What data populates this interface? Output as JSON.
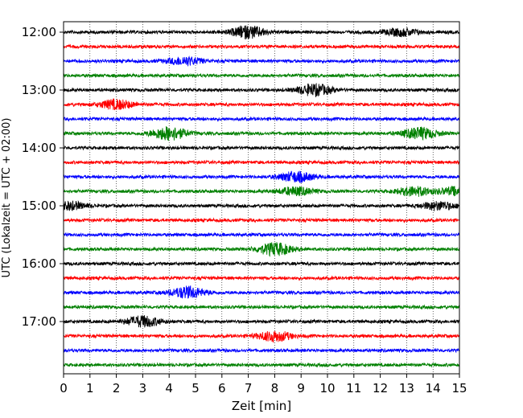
{
  "chart_data": {
    "type": "line",
    "title": "",
    "xlabel": "Zeit  [min]",
    "ylabel": "UTC (Lokalzeit = UTC + 02:00)",
    "xlim": [
      0,
      15
    ],
    "x_ticks": [
      "0",
      "1",
      "2",
      "3",
      "4",
      "5",
      "6",
      "7",
      "8",
      "9",
      "10",
      "11",
      "12",
      "13",
      "14",
      "15"
    ],
    "y_ticks": [
      "12:00",
      "13:00",
      "14:00",
      "15:00",
      "16:00",
      "17:00"
    ],
    "start_time": "12:00",
    "minutes_per_trace": 15,
    "trace_count": 24,
    "grid": "vertical dotted at each minute",
    "colors_cycle": [
      "#000000",
      "#ff0000",
      "#0000ff",
      "#008000"
    ],
    "events": [
      {
        "trace": 0,
        "time_min": 7.0,
        "amp": 0.9
      },
      {
        "trace": 0,
        "time_min": 12.8,
        "amp": 0.55
      },
      {
        "trace": 2,
        "time_min": 4.6,
        "amp": 0.6
      },
      {
        "trace": 4,
        "time_min": 9.5,
        "amp": 0.85
      },
      {
        "trace": 5,
        "time_min": 2.0,
        "amp": 0.7
      },
      {
        "trace": 7,
        "time_min": 4.0,
        "amp": 1.0
      },
      {
        "trace": 7,
        "time_min": 13.5,
        "amp": 0.85
      },
      {
        "trace": 10,
        "time_min": 8.8,
        "amp": 0.75
      },
      {
        "trace": 11,
        "time_min": 8.8,
        "amp": 0.6
      },
      {
        "trace": 11,
        "time_min": 13.3,
        "amp": 0.65
      },
      {
        "trace": 11,
        "time_min": 14.9,
        "amp": 0.6
      },
      {
        "trace": 12,
        "time_min": 0.2,
        "amp": 0.6
      },
      {
        "trace": 12,
        "time_min": 14.2,
        "amp": 0.6
      },
      {
        "trace": 15,
        "time_min": 8.0,
        "amp": 0.9
      },
      {
        "trace": 18,
        "time_min": 4.7,
        "amp": 0.85
      },
      {
        "trace": 20,
        "time_min": 3.0,
        "amp": 0.8
      },
      {
        "trace": 21,
        "time_min": 8.0,
        "amp": 0.75
      }
    ]
  }
}
